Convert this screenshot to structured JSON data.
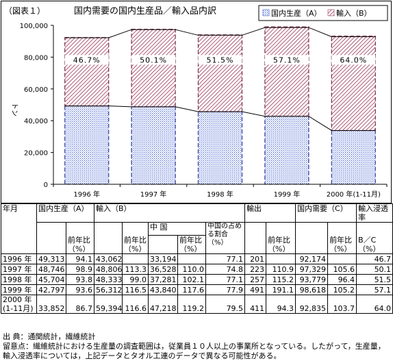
{
  "chart_data": {
    "type": "bar",
    "figure_label": "（図表１）",
    "title": "国内需要の国内生産品／輸入品内訳",
    "ylabel": "トン",
    "ylim": [
      0,
      100000
    ],
    "yticks": [
      "0",
      "20,000",
      "40,000",
      "60,000",
      "80,000",
      "100,000"
    ],
    "categories": [
      "1996 年",
      "1997 年",
      "1998 年",
      "1999 年",
      "2000 年(1-11月)"
    ],
    "series": [
      {
        "name": "国内生産（A）",
        "values": [
          49313,
          48746,
          45704,
          42797,
          33852
        ],
        "pattern": "dots"
      },
      {
        "name": "輸入（B）",
        "values": [
          43062,
          48806,
          48333,
          56312,
          59394
        ],
        "pattern": "hatch"
      }
    ],
    "lines": {
      "domestic": [
        49313,
        48746,
        45704,
        42797,
        33852
      ],
      "total": [
        92174,
        97329,
        93779,
        98618,
        92835
      ]
    },
    "annotations": [
      "46.7%",
      "50.1%",
      "51.5%",
      "57.1%",
      "64.0%"
    ]
  },
  "table": {
    "headers": {
      "year": "年月",
      "domestic": "国内生産（A）",
      "import": "輸入（B）",
      "china": "中 国",
      "china_share": "中国の占める割合（%）",
      "export": "輸出",
      "demand": "国内需要（C）",
      "penetration": "輸入浸透率",
      "ratio": "B／C（%）",
      "yoy": "前年比（%）"
    },
    "rows": [
      {
        "year": "1996 年",
        "cells": [
          "49,313",
          "94.1",
          "43,062",
          "",
          "33,194",
          "",
          "77.1",
          "201",
          "",
          "92,174",
          "",
          "46.7"
        ]
      },
      {
        "year": "1997 年",
        "cells": [
          "48,746",
          "98.9",
          "48,806",
          "113.3",
          "36,528",
          "110.0",
          "74.8",
          "223",
          "110.9",
          "97,329",
          "105.6",
          "50.1"
        ]
      },
      {
        "year": "1998 年",
        "cells": [
          "45,704",
          "93.8",
          "48,333",
          "99.0",
          "37,281",
          "102.1",
          "77.1",
          "257",
          "115.2",
          "93,779",
          "96.4",
          "51.5"
        ]
      },
      {
        "year": "1999 年",
        "cells": [
          "42,797",
          "93.6",
          "56,312",
          "116.5",
          "43,840",
          "117.6",
          "77.9",
          "491",
          "191.1",
          "98,618",
          "105.2",
          "57.1"
        ]
      },
      {
        "year": "2000 年",
        "year2": "(1-11月)",
        "cells": [
          "33,852",
          "86.7",
          "59,394",
          "116.6",
          "47,218",
          "119.2",
          "79.5",
          "411",
          "94.3",
          "92,835",
          "103.7",
          "64.0"
        ]
      }
    ]
  },
  "notes": {
    "source": "出 典：通関統計，繊維統計",
    "caution1": "留意点：繊維統計における生産量の調査範囲は，従業員１０人以上の事業所となっている。したがって，生産量，",
    "caution2": "輸入浸透率については，上記データとタオル工連のデータで異なる可能性がある。"
  }
}
